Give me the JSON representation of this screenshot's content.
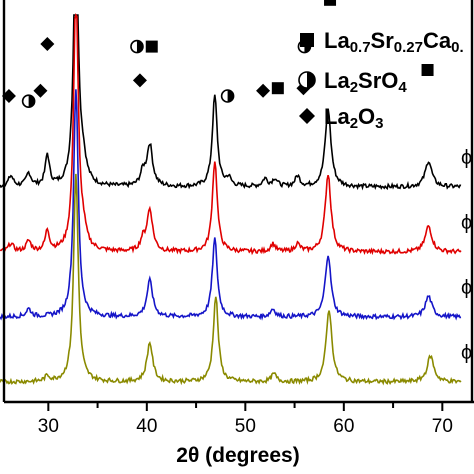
{
  "chart_data": {
    "type": "line",
    "title": "",
    "xlabel": "2θ (degrees)",
    "ylabel": "",
    "xlim": [
      20,
      72
    ],
    "x_ticks": [
      30,
      40,
      50,
      60,
      70
    ],
    "x_tick_labels": [
      "30",
      "40",
      "50",
      "60",
      "70"
    ],
    "grid": false,
    "legend": {
      "placement": "top-right",
      "entries": [
        {
          "label": "La0.7Sr0.27Ca0.",
          "marker": "square",
          "main": "La",
          "parts": [
            {
              "t": "0.7",
              "sub": true
            },
            {
              "t": "Sr",
              "sub": false
            },
            {
              "t": "0.27",
              "sub": true
            },
            {
              "t": "Ca",
              "sub": false
            },
            {
              "t": "0.",
              "sub": true
            }
          ]
        },
        {
          "label": "La2SrO4",
          "marker": "half-circle",
          "main": "La",
          "parts": [
            {
              "t": "2",
              "sub": true
            },
            {
              "t": "SrO",
              "sub": false
            },
            {
              "t": "4",
              "sub": true
            }
          ]
        },
        {
          "label": "La2O3",
          "marker": "diamond",
          "main": "La",
          "parts": [
            {
              "t": "2",
              "sub": true
            },
            {
              "t": "O",
              "sub": false
            },
            {
              "t": "3",
              "sub": true
            }
          ]
        }
      ]
    },
    "series": [
      {
        "color": "#000000",
        "label": "ϕ",
        "baseline": 0.75,
        "noise": 0.008,
        "peaks": [
          [
            26.2,
            0.04,
            0.3
          ],
          [
            28.0,
            0.05,
            0.3
          ],
          [
            29.9,
            0.12,
            0.25
          ],
          [
            32.8,
            1.0,
            0.28
          ],
          [
            33.5,
            0.08,
            0.4
          ],
          [
            39.6,
            0.05,
            0.3
          ],
          [
            40.3,
            0.16,
            0.35
          ],
          [
            46.9,
            0.35,
            0.3
          ],
          [
            48.3,
            0.03,
            0.3
          ],
          [
            52.0,
            0.03,
            0.3
          ],
          [
            53.0,
            0.03,
            0.3
          ],
          [
            55.3,
            0.04,
            0.3
          ],
          [
            58.4,
            0.3,
            0.35
          ],
          [
            68.6,
            0.1,
            0.4
          ]
        ]
      },
      {
        "color": "#e00000",
        "label": "ϕ",
        "baseline": 0.5,
        "noise": 0.008,
        "peaks": [
          [
            26.2,
            0.03,
            0.3
          ],
          [
            28.0,
            0.04,
            0.3
          ],
          [
            29.9,
            0.08,
            0.25
          ],
          [
            32.8,
            1.0,
            0.28
          ],
          [
            33.5,
            0.06,
            0.4
          ],
          [
            39.6,
            0.04,
            0.3
          ],
          [
            40.3,
            0.16,
            0.35
          ],
          [
            46.9,
            0.35,
            0.3
          ],
          [
            52.8,
            0.03,
            0.3
          ],
          [
            55.3,
            0.03,
            0.3
          ],
          [
            58.4,
            0.3,
            0.35
          ],
          [
            68.6,
            0.1,
            0.4
          ]
        ]
      },
      {
        "color": "#1515c8",
        "label": "ϕ",
        "baseline": 0.25,
        "noise": 0.008,
        "peaks": [
          [
            28.0,
            0.03,
            0.3
          ],
          [
            32.8,
            0.88,
            0.28
          ],
          [
            40.3,
            0.14,
            0.35
          ],
          [
            46.9,
            0.3,
            0.3
          ],
          [
            52.8,
            0.03,
            0.3
          ],
          [
            58.4,
            0.24,
            0.35
          ],
          [
            68.6,
            0.08,
            0.4
          ]
        ]
      },
      {
        "color": "#8a8a00",
        "label": "ϕ",
        "baseline": 0.0,
        "noise": 0.008,
        "peaks": [
          [
            29.9,
            0.02,
            0.3
          ],
          [
            32.8,
            0.8,
            0.28
          ],
          [
            40.3,
            0.15,
            0.35
          ],
          [
            47.0,
            0.33,
            0.3
          ],
          [
            52.9,
            0.03,
            0.3
          ],
          [
            58.5,
            0.28,
            0.35
          ],
          [
            68.8,
            0.1,
            0.4
          ]
        ]
      }
    ],
    "phase_markers": [
      {
        "marker": "square",
        "x": 31.1,
        "y": 1.97
      },
      {
        "marker": "square",
        "x": 40.5,
        "y": 1.29
      },
      {
        "marker": "square",
        "x": 47.0,
        "y": 1.54
      },
      {
        "marker": "square",
        "x": 53.3,
        "y": 1.13
      },
      {
        "marker": "square",
        "x": 58.6,
        "y": 1.47
      },
      {
        "marker": "square",
        "x": 68.5,
        "y": 1.2
      },
      {
        "marker": "half-circle",
        "x": 28.0,
        "y": 1.08
      },
      {
        "marker": "half-circle",
        "x": 39.0,
        "y": 1.29
      },
      {
        "marker": "half-circle",
        "x": 48.2,
        "y": 1.1
      },
      {
        "marker": "half-circle",
        "x": 56.0,
        "y": 1.29
      },
      {
        "marker": "diamond",
        "x": 26.0,
        "y": 1.1
      },
      {
        "marker": "diamond",
        "x": 29.2,
        "y": 1.12
      },
      {
        "marker": "diamond",
        "x": 29.9,
        "y": 1.3
      },
      {
        "marker": "diamond",
        "x": 39.3,
        "y": 1.16
      },
      {
        "marker": "diamond",
        "x": 51.8,
        "y": 1.12
      },
      {
        "marker": "diamond",
        "x": 55.9,
        "y": 1.13
      }
    ]
  }
}
